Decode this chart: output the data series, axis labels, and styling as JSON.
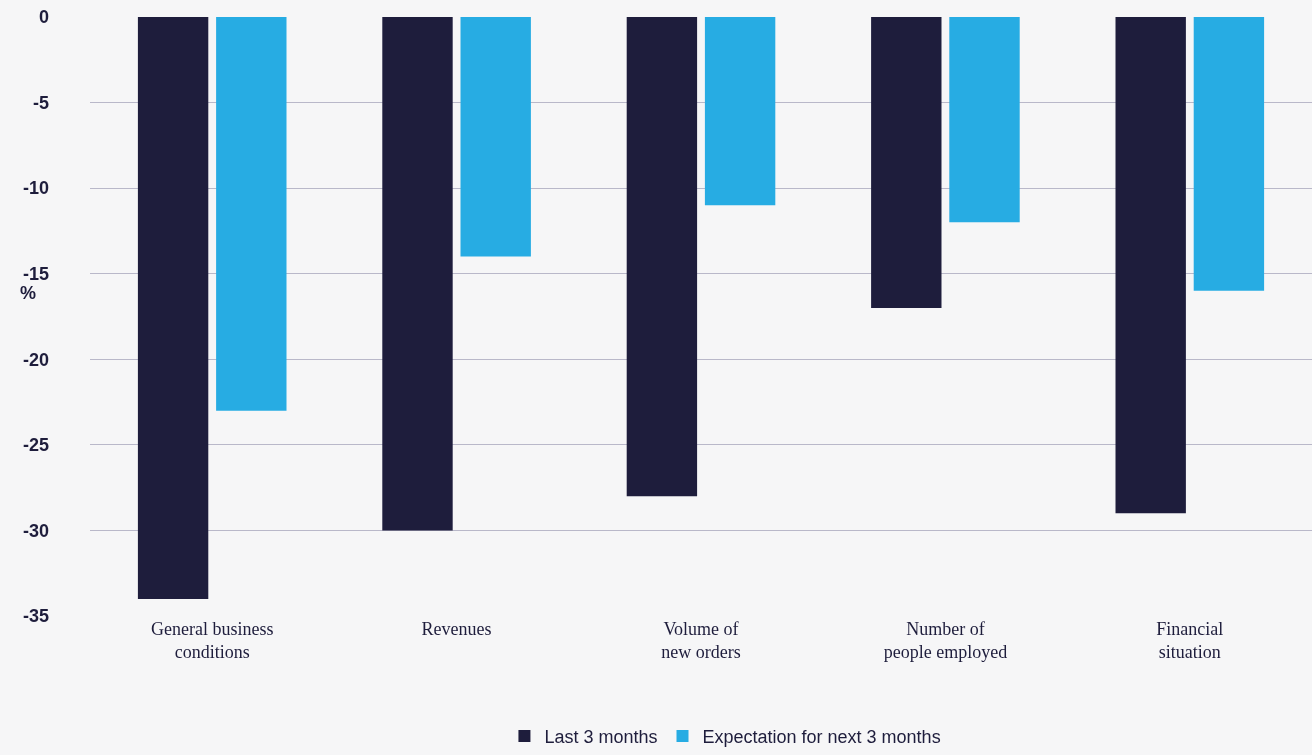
{
  "chart_data": {
    "type": "bar",
    "ylabel": "%",
    "categories": [
      "General business conditions",
      "Revenues",
      "Volume of new orders",
      "Number of people employed",
      "Financial situation"
    ],
    "series": [
      {
        "name": "Last 3 months",
        "color": "#1e1d3c",
        "values": [
          -34,
          -30,
          -28,
          -17,
          -29
        ]
      },
      {
        "name": "Expectation for next 3 months",
        "color": "#27ace3",
        "values": [
          -23,
          -14,
          -11,
          -12,
          -16
        ]
      }
    ],
    "ylim": [
      -35,
      0
    ],
    "yticks": [
      0,
      -5,
      -10,
      -15,
      -20,
      -25,
      -30,
      -35
    ],
    "grid": "y",
    "legend": "bottom"
  }
}
